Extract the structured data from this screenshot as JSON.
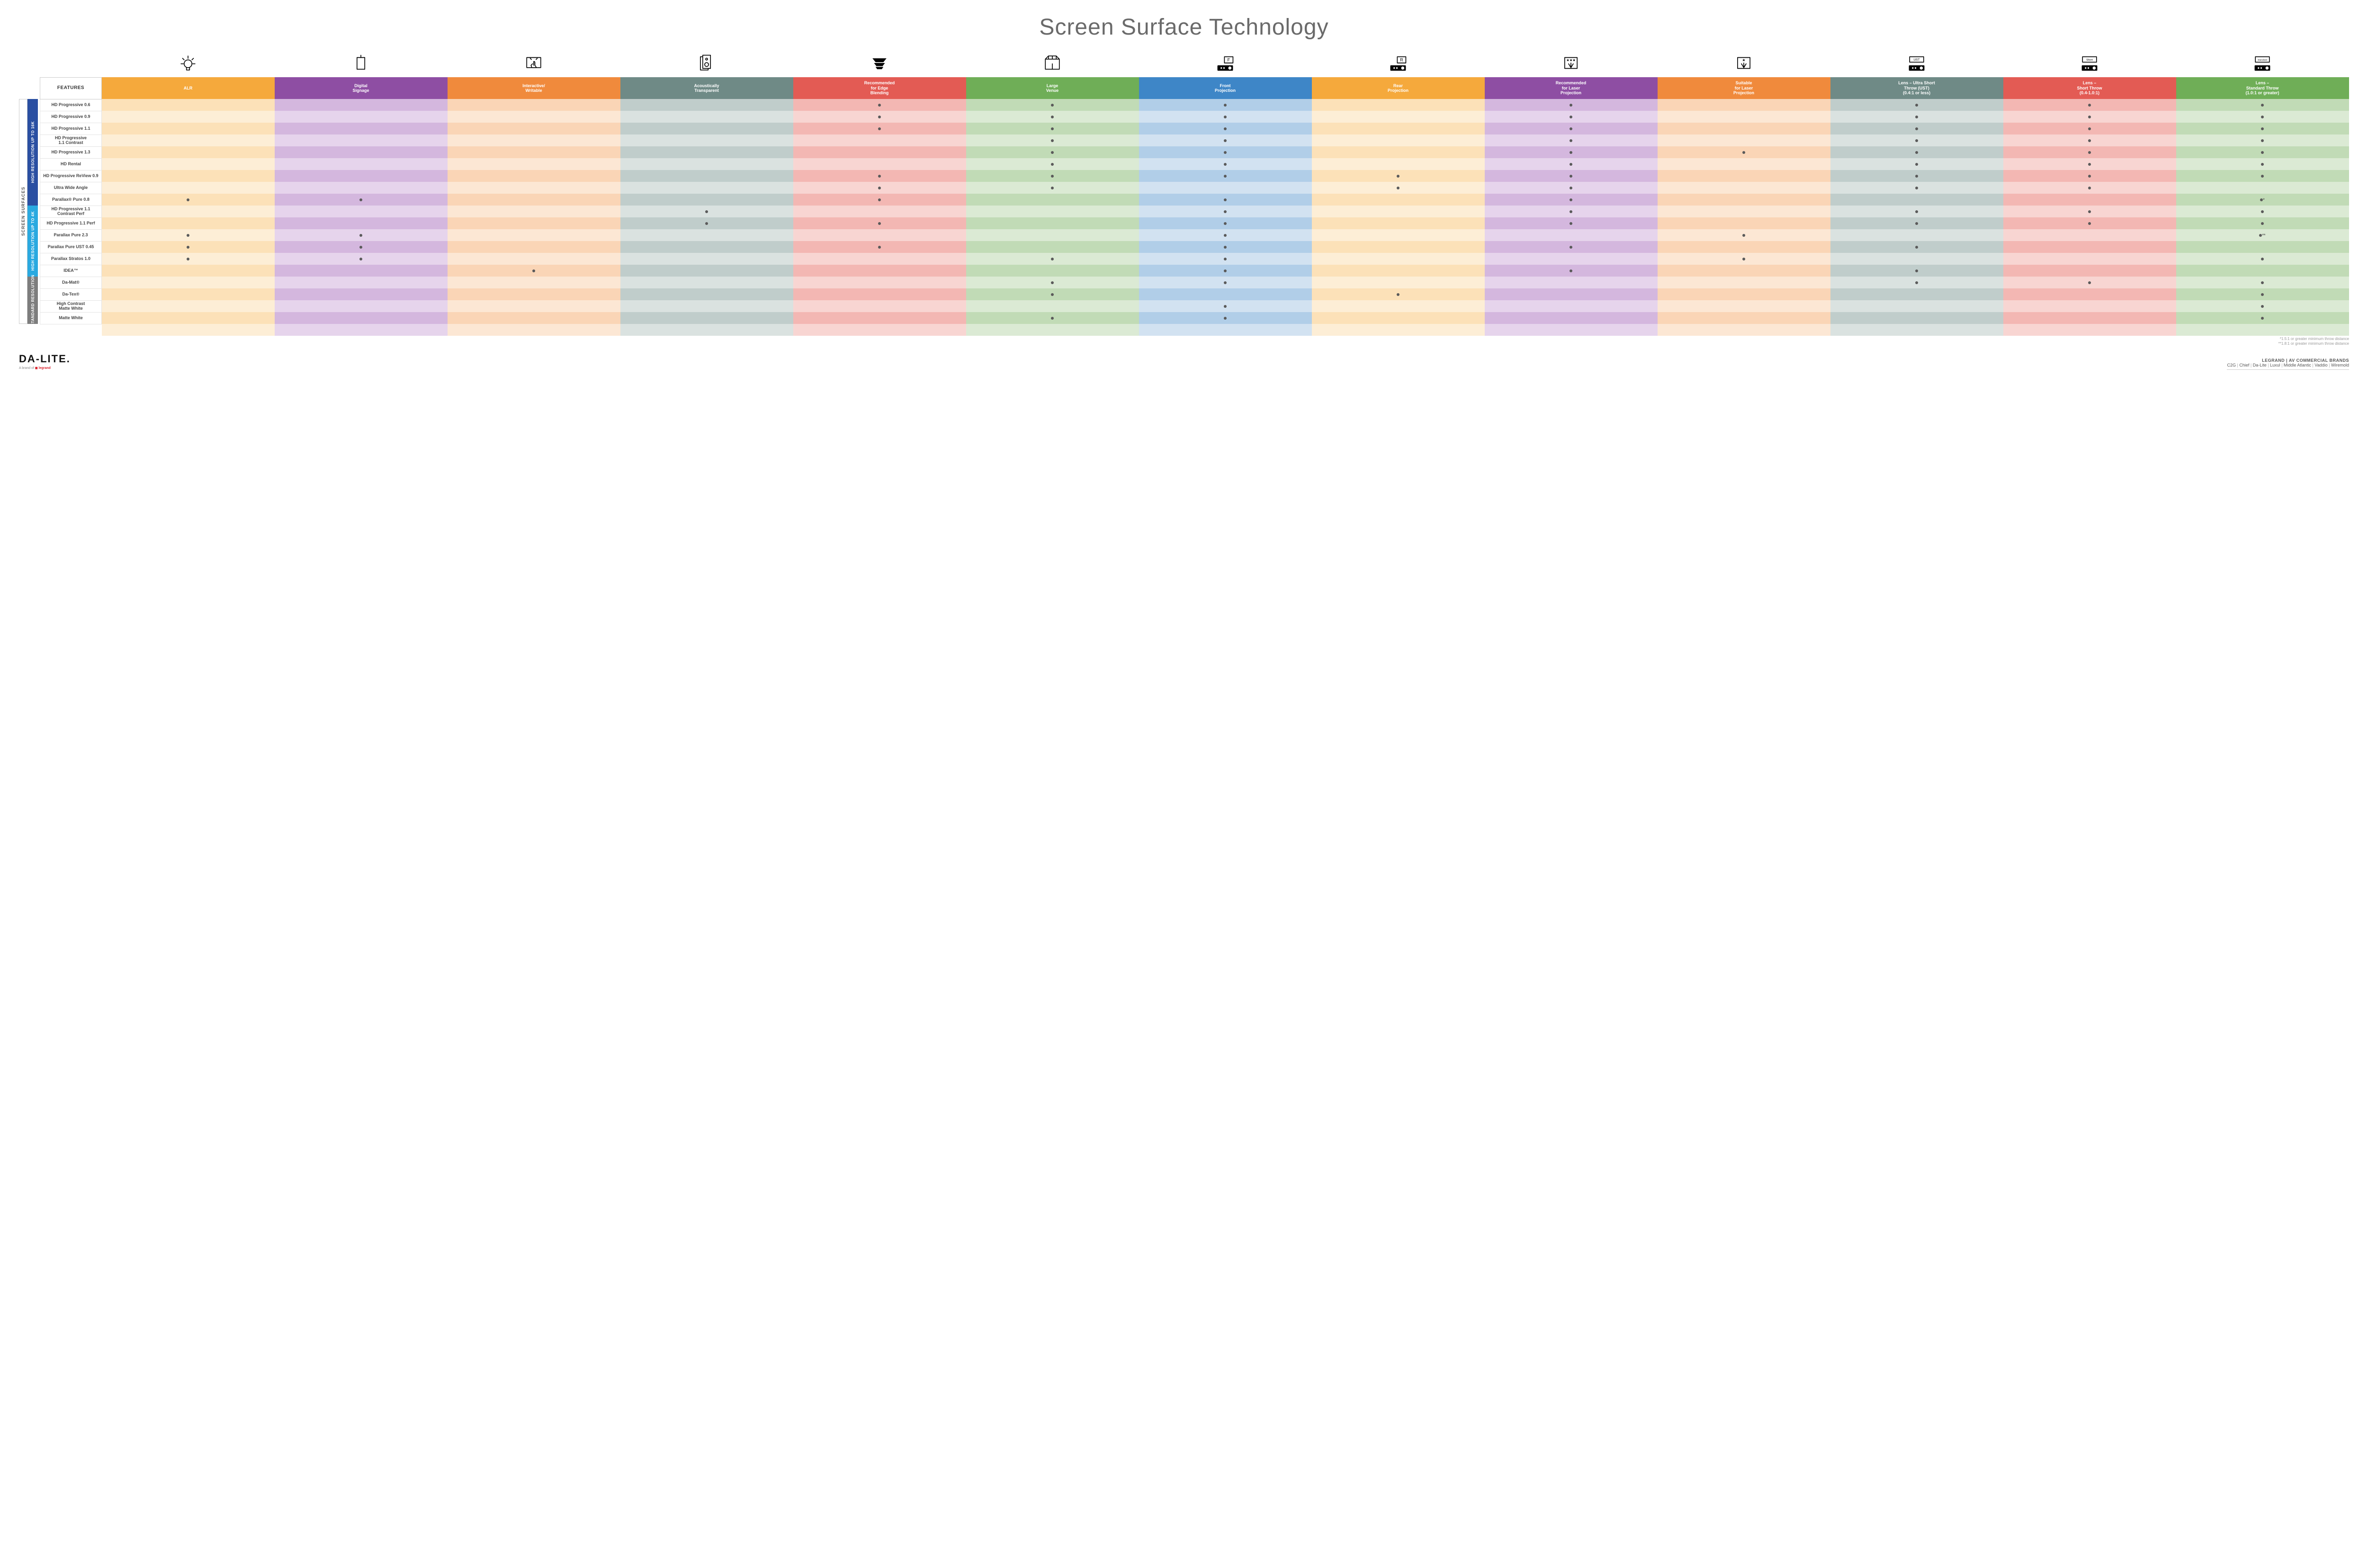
{
  "title": "Screen Surface Technology",
  "side_outer_label": "SCREEN SURFACES",
  "columns": [
    {
      "key": "alr",
      "label": "ALR",
      "color": "#f5a93c",
      "lighten": "#fce1b8",
      "lighten2": "#fdeed6",
      "icon": "bulb"
    },
    {
      "key": "signage",
      "label": "Digital\nSignage",
      "color": "#8e4ea3",
      "lighten": "#d4b7de",
      "lighten2": "#e6d4ec",
      "icon": "signage"
    },
    {
      "key": "interactive",
      "label": "Interactive/\nWritable",
      "color": "#f08a3c",
      "lighten": "#fad5b6",
      "lighten2": "#fce7d4",
      "icon": "touch"
    },
    {
      "key": "acoustic",
      "label": "Acoustically\nTransparent",
      "color": "#6f8a86",
      "lighten": "#c0cdcb",
      "lighten2": "#dae2e0",
      "icon": "speaker"
    },
    {
      "key": "edge",
      "label": "Recommended\nfor Edge\nBlending",
      "color": "#e35b54",
      "lighten": "#f3b7b3",
      "lighten2": "#f8d5d2",
      "icon": "blend"
    },
    {
      "key": "venue",
      "label": "Large\nVenue",
      "color": "#6fae57",
      "lighten": "#c1dbb6",
      "lighten2": "#dbead4",
      "icon": "venue"
    },
    {
      "key": "front",
      "label": "Front\nProjection",
      "color": "#3e86c7",
      "lighten": "#b1cee8",
      "lighten2": "#d2e2f1",
      "icon": "front"
    },
    {
      "key": "rear",
      "label": "Rear\nProjection",
      "color": "#f5a93c",
      "lighten": "#fce1b8",
      "lighten2": "#fdeed6",
      "icon": "rear"
    },
    {
      "key": "reclaser",
      "label": "Recommended\nfor Laser\nProjection",
      "color": "#8e4ea3",
      "lighten": "#d4b7de",
      "lighten2": "#e6d4ec",
      "icon": "laser3"
    },
    {
      "key": "suitlaser",
      "label": "Suitable\nfor Laser\nProjection",
      "color": "#f08a3c",
      "lighten": "#fad5b6",
      "lighten2": "#fce7d4",
      "icon": "laser1"
    },
    {
      "key": "ust",
      "label": "Lens – Ultra Short\nThrow (UST)\n(0.4:1 or less)",
      "color": "#6f8a86",
      "lighten": "#c0cdcb",
      "lighten2": "#dae2e0",
      "icon": "ustproj"
    },
    {
      "key": "short",
      "label": "Lens –\nShort Throw\n(0.4-1.0:1)",
      "color": "#e35b54",
      "lighten": "#f3b7b3",
      "lighten2": "#f8d5d2",
      "icon": "shortproj"
    },
    {
      "key": "std",
      "label": "Lens –\nStandard Throw\n(1.0:1 or greater)",
      "color": "#6fae57",
      "lighten": "#c1dbb6",
      "lighten2": "#dbead4",
      "icon": "stdproj"
    }
  ],
  "groups": [
    {
      "label": "HIGH RESOLUTION UP TO 16K",
      "color": "#2a4fa2",
      "rows": [
        {
          "name": "HD Progressive 0.6",
          "dots": {
            "edge": "•",
            "venue": "•",
            "front": "•",
            "reclaser": "•",
            "ust": "•",
            "short": "•",
            "std": "•"
          }
        },
        {
          "name": "HD Progressive 0.9",
          "dots": {
            "edge": "•",
            "venue": "•",
            "front": "•",
            "reclaser": "•",
            "ust": "•",
            "short": "•",
            "std": "•"
          }
        },
        {
          "name": "HD Progressive 1.1",
          "dots": {
            "edge": "•",
            "venue": "•",
            "front": "•",
            "reclaser": "•",
            "ust": "•",
            "short": "•",
            "std": "•"
          }
        },
        {
          "name": "HD Progressive\n1.1 Contrast",
          "dots": {
            "venue": "•",
            "front": "•",
            "reclaser": "•",
            "ust": "•",
            "short": "•",
            "std": "•"
          }
        },
        {
          "name": "HD Progressive 1.3",
          "dots": {
            "venue": "•",
            "front": "•",
            "reclaser": "•",
            "suitlaser": "•",
            "ust": "•",
            "short": "•",
            "std": "•"
          }
        },
        {
          "name": "HD Rental",
          "dots": {
            "venue": "•",
            "front": "•",
            "reclaser": "•",
            "ust": "•",
            "short": "•",
            "std": "•"
          }
        },
        {
          "name": "HD Progressive ReView 0.9",
          "dots": {
            "edge": "•",
            "venue": "•",
            "front": "•",
            "rear": "•",
            "reclaser": "•",
            "ust": "•",
            "short": "•",
            "std": "•"
          }
        },
        {
          "name": "Ultra Wide Angle",
          "dots": {
            "edge": "•",
            "venue": "•",
            "rear": "•",
            "reclaser": "•",
            "ust": "•",
            "short": "•"
          }
        },
        {
          "name": "Parallax® Pure 0.8",
          "dots": {
            "alr": "•",
            "signage": "•",
            "edge": "•",
            "front": "•",
            "reclaser": "•",
            "std": "•*"
          }
        }
      ]
    },
    {
      "label": "HIGH RESOLUTION UP TO 4K",
      "color": "#2aa9e0",
      "rows": [
        {
          "name": "HD Progressive 1.1\nContrast Perf",
          "dots": {
            "acoustic": "•",
            "front": "•",
            "reclaser": "•",
            "ust": "•",
            "short": "•",
            "std": "•"
          }
        },
        {
          "name": "HD Progressive 1.1 Perf",
          "dots": {
            "acoustic": "•",
            "edge": "•",
            "front": "•",
            "reclaser": "•",
            "ust": "•",
            "short": "•",
            "std": "•"
          }
        },
        {
          "name": "Parallax Pure 2.3",
          "dots": {
            "alr": "•",
            "signage": "•",
            "front": "•",
            "suitlaser": "•",
            "std": "•**"
          }
        },
        {
          "name": "Parallax Pure UST 0.45",
          "dots": {
            "alr": "•",
            "signage": "•",
            "edge": "•",
            "front": "•",
            "reclaser": "•",
            "ust": "•"
          }
        },
        {
          "name": "Parallax Stratos 1.0",
          "dots": {
            "alr": "•",
            "signage": "•",
            "venue": "•",
            "front": "•",
            "suitlaser": "•",
            "std": "•"
          }
        },
        {
          "name": "IDEA™",
          "dots": {
            "interactive": "•",
            "front": "•",
            "reclaser": "•",
            "ust": "•"
          }
        }
      ]
    },
    {
      "label": "STANDARD\nRESOLUTION",
      "color": "#7d7d7d",
      "rows": [
        {
          "name": "Da-Mat®",
          "dots": {
            "venue": "•",
            "front": "•",
            "ust": "•",
            "short": "•",
            "std": "•"
          }
        },
        {
          "name": "Da-Tex®",
          "dots": {
            "venue": "•",
            "rear": "•",
            "std": "•"
          }
        },
        {
          "name": "High Contrast\nMatte White",
          "dots": {
            "front": "•",
            "std": "•"
          }
        },
        {
          "name": "Matte White",
          "dots": {
            "venue": "•",
            "front": "•",
            "std": "•"
          }
        }
      ]
    }
  ],
  "features_header": "FEATURES",
  "footnotes": [
    "*1.5:1 or greater minimum throw distance",
    "**1.8:1 or greater minimum throw distance"
  ],
  "logo": "DA-LITE.",
  "logo_sub_prefix": "A brand of ",
  "logo_sub_brand": "legrand",
  "brands_title": "LEGRAND | AV COMMERCIAL BRANDS",
  "brands": [
    "C2G",
    "Chief",
    "Da-Lite",
    "Luxul",
    "Middle Atlantic",
    "Vaddio",
    "Wiremold"
  ]
}
